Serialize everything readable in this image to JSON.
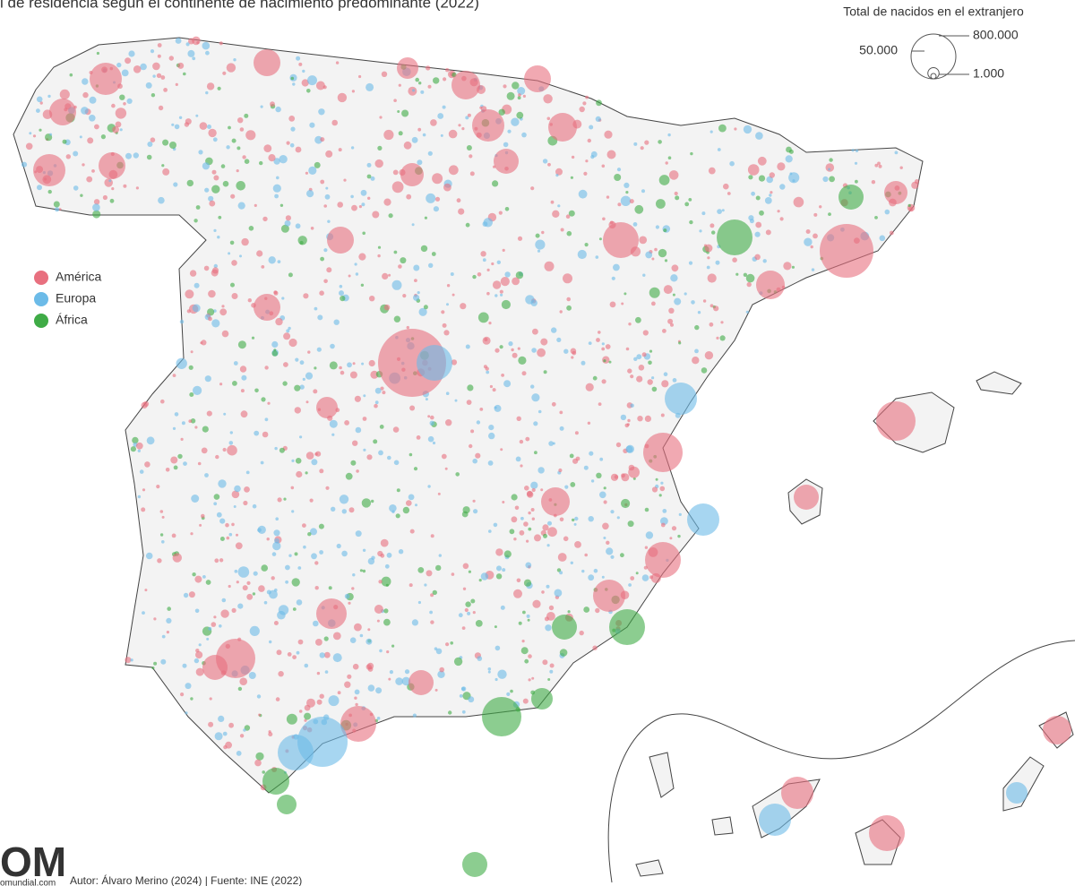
{
  "title": "l de residencia según el continente de nacimiento predominante (2022)",
  "legend": {
    "items": [
      {
        "label": "América",
        "color": "#e8707f"
      },
      {
        "label": "Europa",
        "color": "#6cbbe8"
      },
      {
        "label": "África",
        "color": "#3fab46"
      }
    ]
  },
  "size_legend": {
    "title": "Total de nacidos en el extranjero",
    "sizes": [
      {
        "value": 800000,
        "label": "800.000"
      },
      {
        "value": 50000,
        "label": "50.000"
      },
      {
        "value": 1000,
        "label": "1.000"
      }
    ]
  },
  "footer": {
    "logo": "OM",
    "site": "omundial.com",
    "credit": "Autor: Álvaro Merino (2024) | Fuente: INE (2022)"
  }
}
